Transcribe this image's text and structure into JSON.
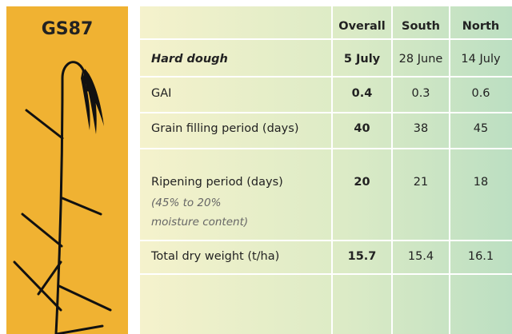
{
  "title": "GS87",
  "table": {
    "columns": [
      "Overall",
      "South",
      "North"
    ],
    "rows": [
      {
        "label": "Hard dough",
        "values": [
          "5 July",
          "28 June",
          "14 July"
        ]
      },
      {
        "label": "GAI",
        "values": [
          "0.4",
          "0.3",
          "0.6"
        ]
      },
      {
        "label": "Grain filling period (days)",
        "values": [
          "40",
          "38",
          "45"
        ]
      },
      {
        "label": "Ripening period (days)",
        "note": "(45% to 20% moisture content)",
        "values": [
          "20",
          "21",
          "18"
        ]
      },
      {
        "label": "Total dry weight (t/ha)",
        "values": [
          "15.7",
          "15.4",
          "16.1"
        ]
      }
    ]
  }
}
